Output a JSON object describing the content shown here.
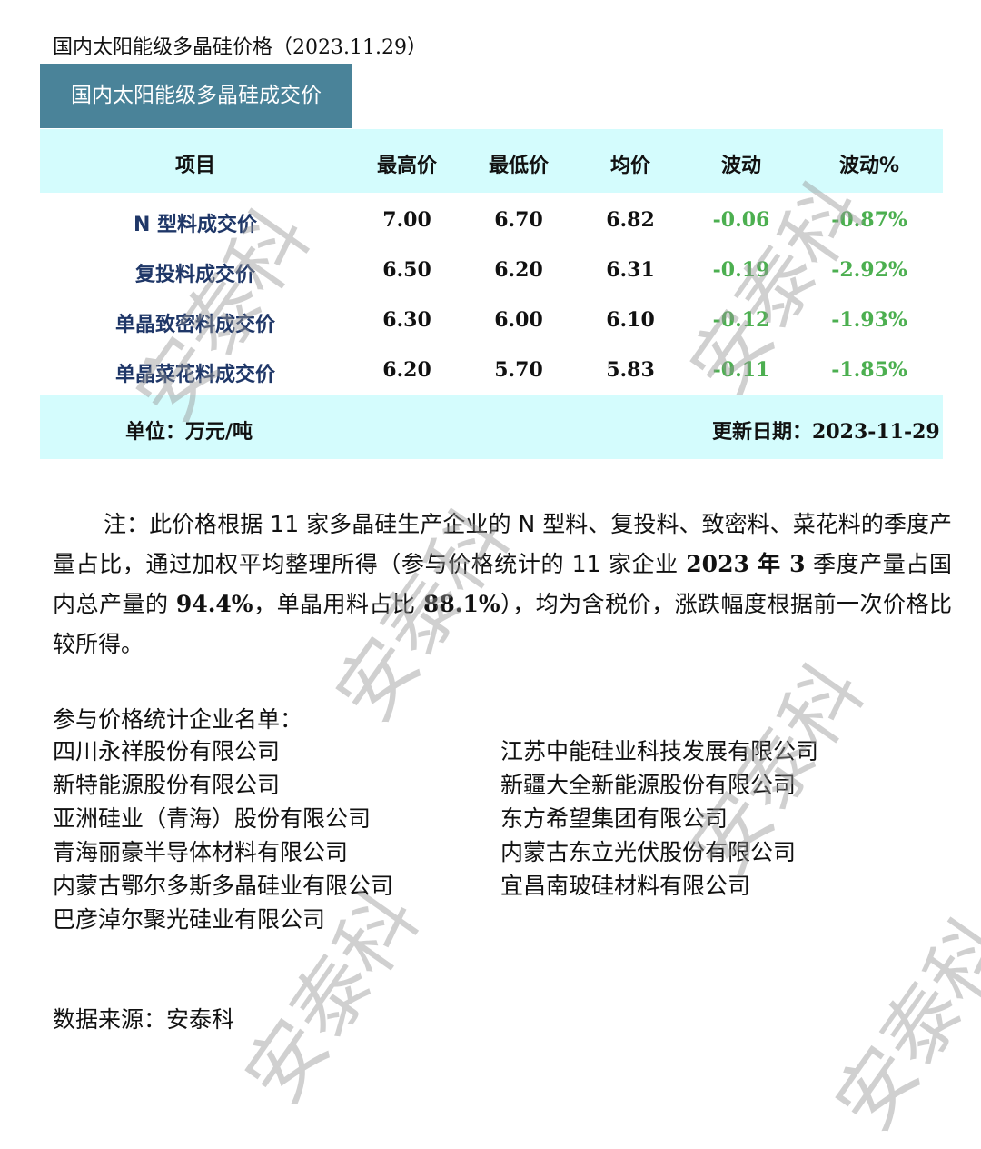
{
  "title": "国内太阳能级多晶硅价格（2023.11.29）",
  "tab_label": "国内太阳能级多晶硅成交价",
  "table": {
    "headers": [
      "项目",
      "最高价",
      "最低价",
      "均价",
      "波动",
      "波动%"
    ],
    "rows": [
      [
        "N 型料成交价",
        "7.00",
        "6.70",
        "6.82",
        "-0.06",
        "-0.87%"
      ],
      [
        "复投料成交价",
        "6.50",
        "6.20",
        "6.31",
        "-0.19",
        "-2.92%"
      ],
      [
        "单晶致密料成交价",
        "6.30",
        "6.00",
        "6.10",
        "-0.12",
        "-1.93%"
      ],
      [
        "单晶菜花料成交价",
        "6.20",
        "5.70",
        "5.83",
        "-0.11",
        "-1.85%"
      ]
    ],
    "unit": "单位：万元/吨",
    "update_label": "更新日期：",
    "update_date": "2023-11-29"
  },
  "note": {
    "p1": "注：此价格根据 11 家多晶硅生产企业的 N 型料、复投料、致密料、菜花料的季度产量占比，通过加权平均整理所得（参与价格统计的 11 家企业 ",
    "b1": "2023",
    "p2": " 年 ",
    "b2": "3",
    "p3": " 季度产量占国内总产量的 ",
    "b3": "94.4%",
    "p4": "，单晶用料占比 ",
    "b4": "88.1%",
    "p5": "），均为含税价，涨跌幅度根据前一次价格比较所得。"
  },
  "companies": {
    "title": "参与价格统计企业名单：",
    "left": [
      "四川永祥股份有限公司",
      "新特能源股份有限公司",
      "亚洲硅业（青海）股份有限公司",
      "青海丽豪半导体材料有限公司",
      "内蒙古鄂尔多斯多晶硅业有限公司",
      "巴彦淖尔聚光硅业有限公司"
    ],
    "right": [
      "江苏中能硅业科技发展有限公司",
      "新疆大全新能源股份有限公司",
      "东方希望集团有限公司",
      "内蒙古东立光伏股份有限公司",
      "宜昌南玻硅材料有限公司"
    ]
  },
  "source": "数据来源：安泰科",
  "watermark": "安泰科",
  "colors": {
    "tab": "#4a8399",
    "band": "#d4fcfd",
    "name": "#1f3768",
    "negative": "#4caf50"
  }
}
